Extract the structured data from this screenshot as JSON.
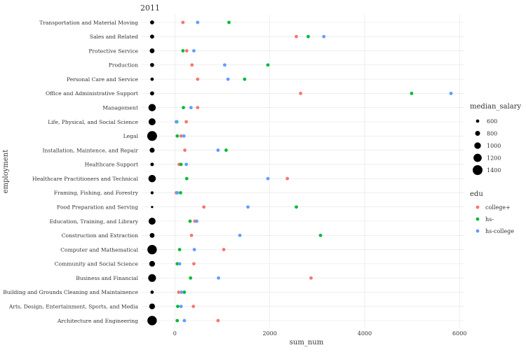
{
  "chart_data": {
    "type": "scatter",
    "title": "2011",
    "xlabel": "sum_num",
    "ylabel": "employment",
    "xlim": [
      -700,
      6100
    ],
    "xticks": [
      0,
      2000,
      4000,
      6000
    ],
    "grid": true,
    "categories": [
      "Transportation and Material Moving",
      "Sales and Related",
      "Protective Service",
      "Production",
      "Personal Care and Service",
      "Office and Administrative Support",
      "Management",
      "Life, Physical, and Social Science",
      "Legal",
      "Installation, Maintence, and Repair",
      "Healthcare Support",
      "Healthcare Practitioners and Technical",
      "Framing, Fishing, and Forestry",
      "Food Preparation and Serving",
      "Education, Training, and Library",
      "Construction and Extraction",
      "Computer and Mathematical",
      "Community and Social Science",
      "Business and Financial",
      "Building and Grounds Cleaning and Maintainence",
      "Arts, Design, Entertainment, Sports, and Media",
      "Architecture and Engineering"
    ],
    "median_salary": [
      690,
      690,
      780,
      690,
      600,
      690,
      1100,
      1050,
      1400,
      800,
      620,
      1100,
      560,
      470,
      1050,
      780,
      1350,
      900,
      1150,
      600,
      900,
      1350
    ],
    "size_x": -480,
    "series": [
      {
        "name": "college+",
        "color": "#F8766D",
        "values": [
          170,
          2560,
          250,
          360,
          480,
          2650,
          480,
          240,
          130,
          210,
          90,
          2370,
          30,
          610,
          420,
          350,
          1030,
          400,
          2870,
          80,
          390,
          910
        ]
      },
      {
        "name": "hs-",
        "color": "#00BA38",
        "values": [
          1140,
          2810,
          170,
          1960,
          1470,
          4990,
          180,
          40,
          50,
          1080,
          130,
          250,
          120,
          2560,
          320,
          3070,
          100,
          50,
          330,
          200,
          60,
          50
        ]
      },
      {
        "name": "hs-college",
        "color": "#619CFF",
        "values": [
          480,
          3140,
          400,
          1050,
          1120,
          5820,
          340,
          30,
          190,
          910,
          240,
          1960,
          50,
          1540,
          460,
          1370,
          410,
          100,
          920,
          140,
          130,
          200
        ]
      }
    ],
    "legend": {
      "position": "right",
      "size_title": "median_salary",
      "size_entries": [
        600,
        800,
        1000,
        1200,
        1400
      ],
      "color_title": "edu"
    }
  }
}
